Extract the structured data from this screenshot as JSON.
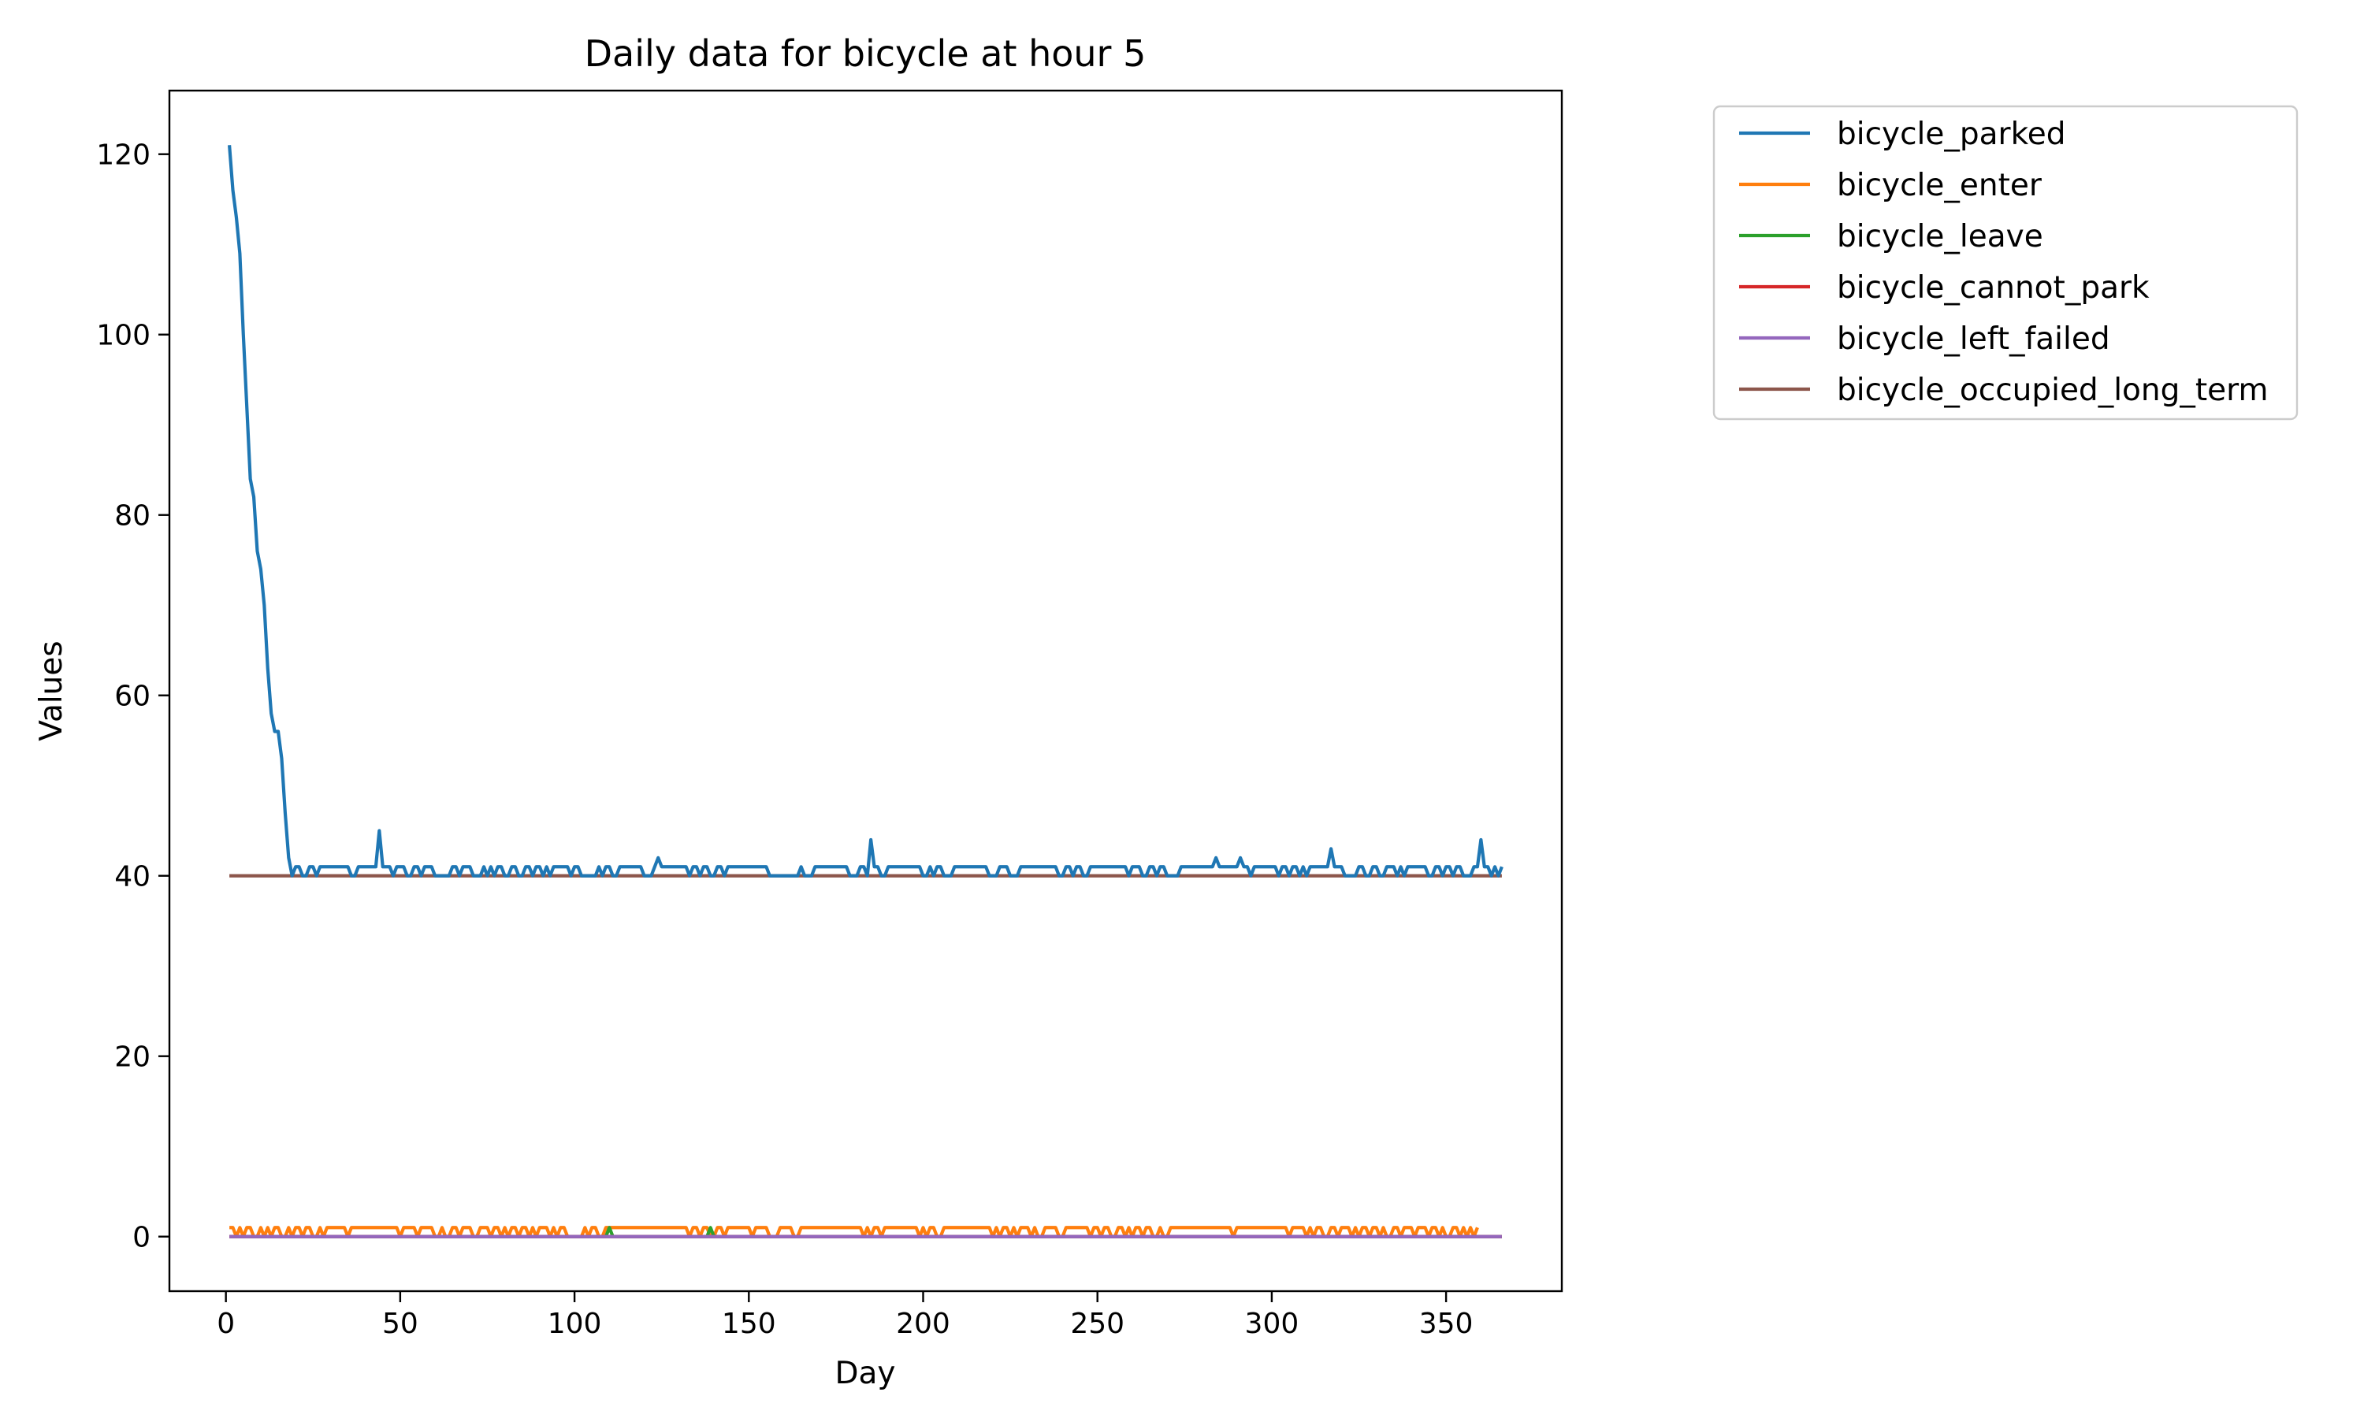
{
  "chart_data": {
    "type": "line",
    "title": "Daily data for bicycle at hour 5",
    "xlabel": "Day",
    "ylabel": "Values",
    "xlim": [
      -16.2,
      383.2
    ],
    "ylim": [
      -6.05,
      127.05
    ],
    "xticks": [
      0,
      50,
      100,
      150,
      200,
      250,
      300,
      350
    ],
    "yticks": [
      0,
      20,
      40,
      60,
      80,
      100,
      120
    ],
    "legend_position": "upper left, outside right of axes",
    "colors": {
      "bicycle_parked": "#1f77b4",
      "bicycle_enter": "#ff7f0e",
      "bicycle_leave": "#2ca02c",
      "bicycle_cannot_park": "#d62728",
      "bicycle_left_failed": "#9467bd",
      "bicycle_occupied_long_term": "#8c564b"
    },
    "series": [
      {
        "name": "bicycle_parked",
        "x_start": 1,
        "values": [
          121,
          116,
          113,
          109,
          100,
          92,
          84,
          82,
          76,
          74,
          70,
          63,
          58,
          56,
          56,
          53,
          47,
          42,
          40,
          41,
          41,
          40,
          40,
          41,
          41,
          40,
          41,
          41,
          41,
          41,
          41,
          41,
          41,
          41,
          41,
          40,
          40,
          41,
          41,
          41,
          41,
          41,
          41,
          45,
          41,
          41,
          41,
          40,
          41,
          41,
          41,
          40,
          40,
          41,
          41,
          40,
          41,
          41,
          41,
          40,
          40,
          40,
          40,
          40,
          41,
          41,
          40,
          41,
          41,
          41,
          40,
          40,
          40,
          41,
          40,
          41,
          40,
          41,
          41,
          40,
          40,
          41,
          41,
          40,
          40,
          41,
          41,
          40,
          41,
          41,
          40,
          41,
          40,
          41,
          41,
          41,
          41,
          41,
          40,
          41,
          41,
          40,
          40,
          40,
          40,
          40,
          41,
          40,
          41,
          41,
          40,
          40,
          41,
          41,
          41,
          41,
          41,
          41,
          41,
          40,
          40,
          40,
          41,
          42,
          41,
          41,
          41,
          41,
          41,
          41,
          41,
          41,
          40,
          41,
          41,
          40,
          41,
          41,
          40,
          40,
          41,
          41,
          40,
          41,
          41,
          41,
          41,
          41,
          41,
          41,
          41,
          41,
          41,
          41,
          41,
          40,
          40,
          40,
          40,
          40,
          40,
          40,
          40,
          40,
          41,
          40,
          40,
          40,
          41,
          41,
          41,
          41,
          41,
          41,
          41,
          41,
          41,
          41,
          40,
          40,
          40,
          41,
          41,
          40,
          44,
          41,
          41,
          40,
          40,
          41,
          41,
          41,
          41,
          41,
          41,
          41,
          41,
          41,
          41,
          40,
          40,
          41,
          40,
          41,
          41,
          40,
          40,
          40,
          41,
          41,
          41,
          41,
          41,
          41,
          41,
          41,
          41,
          41,
          40,
          40,
          40,
          41,
          41,
          41,
          40,
          40,
          40,
          41,
          41,
          41,
          41,
          41,
          41,
          41,
          41,
          41,
          41,
          41,
          40,
          40,
          41,
          41,
          40,
          41,
          41,
          40,
          40,
          41,
          41,
          41,
          41,
          41,
          41,
          41,
          41,
          41,
          41,
          41,
          40,
          41,
          41,
          41,
          40,
          40,
          41,
          41,
          40,
          41,
          41,
          40,
          40,
          40,
          40,
          41,
          41,
          41,
          41,
          41,
          41,
          41,
          41,
          41,
          41,
          42,
          41,
          41,
          41,
          41,
          41,
          41,
          42,
          41,
          41,
          40,
          41,
          41,
          41,
          41,
          41,
          41,
          41,
          40,
          41,
          41,
          40,
          41,
          41,
          40,
          41,
          40,
          41,
          41,
          41,
          41,
          41,
          41,
          43,
          41,
          41,
          41,
          40,
          40,
          40,
          40,
          41,
          41,
          40,
          40,
          41,
          41,
          40,
          40,
          41,
          41,
          41,
          40,
          41,
          40,
          41,
          41,
          41,
          41,
          41,
          41,
          40,
          40,
          41,
          41,
          40,
          41,
          41,
          40,
          41,
          41,
          40,
          40,
          40,
          41,
          41,
          44,
          41,
          41,
          40,
          41,
          40,
          41
        ]
      },
      {
        "name": "bicycle_enter",
        "x_start": 1,
        "values": [
          1,
          1,
          0,
          1,
          0,
          1,
          1,
          0,
          0,
          1,
          0,
          1,
          0,
          1,
          1,
          0,
          0,
          1,
          0,
          1,
          1,
          0,
          1,
          1,
          0,
          0,
          1,
          0,
          1,
          1,
          1,
          1,
          1,
          1,
          0,
          1,
          1,
          1,
          1,
          1,
          1,
          1,
          1,
          1,
          1,
          1,
          1,
          1,
          1,
          0,
          1,
          1,
          1,
          1,
          0,
          1,
          1,
          1,
          1,
          0,
          0,
          1,
          0,
          0,
          1,
          1,
          0,
          1,
          1,
          1,
          0,
          0,
          1,
          1,
          1,
          0,
          1,
          1,
          0,
          1,
          0,
          1,
          1,
          0,
          1,
          1,
          0,
          1,
          0,
          1,
          1,
          1,
          0,
          1,
          0,
          1,
          1,
          0,
          0,
          0,
          0,
          0,
          1,
          0,
          1,
          1,
          0,
          0,
          1,
          1,
          1,
          1,
          1,
          1,
          1,
          1,
          1,
          1,
          1,
          1,
          1,
          1,
          1,
          1,
          1,
          1,
          1,
          1,
          1,
          1,
          1,
          1,
          0,
          1,
          1,
          0,
          1,
          1,
          0,
          0,
          1,
          1,
          0,
          1,
          1,
          1,
          1,
          1,
          1,
          1,
          0,
          1,
          1,
          1,
          1,
          0,
          0,
          0,
          1,
          1,
          1,
          1,
          0,
          0,
          1,
          1,
          1,
          1,
          1,
          1,
          1,
          1,
          1,
          1,
          1,
          1,
          1,
          1,
          1,
          1,
          1,
          1,
          0,
          1,
          0,
          1,
          1,
          0,
          1,
          1,
          1,
          1,
          1,
          1,
          1,
          1,
          1,
          1,
          0,
          1,
          0,
          1,
          1,
          0,
          0,
          1,
          1,
          1,
          1,
          1,
          1,
          1,
          1,
          1,
          1,
          1,
          1,
          1,
          1,
          0,
          1,
          0,
          1,
          1,
          0,
          1,
          0,
          1,
          1,
          1,
          0,
          1,
          0,
          0,
          1,
          1,
          1,
          1,
          0,
          0,
          1,
          1,
          1,
          1,
          1,
          1,
          1,
          0,
          1,
          1,
          0,
          1,
          1,
          0,
          0,
          1,
          1,
          0,
          1,
          0,
          1,
          1,
          0,
          1,
          1,
          0,
          0,
          1,
          0,
          0,
          1,
          1,
          1,
          1,
          1,
          1,
          1,
          1,
          1,
          1,
          1,
          1,
          1,
          1,
          1,
          1,
          1,
          1,
          0,
          1,
          1,
          1,
          1,
          1,
          1,
          1,
          1,
          1,
          1,
          1,
          1,
          1,
          1,
          1,
          0,
          1,
          1,
          1,
          1,
          0,
          1,
          0,
          1,
          1,
          0,
          0,
          1,
          1,
          0,
          1,
          1,
          1,
          0,
          1,
          0,
          1,
          1,
          0,
          1,
          1,
          0,
          1,
          0,
          0,
          1,
          1,
          0,
          1,
          1,
          1,
          0,
          1,
          1,
          1,
          0,
          1,
          1,
          0,
          1,
          0,
          0,
          1,
          1,
          0,
          1,
          0,
          1,
          0,
          1
        ]
      },
      {
        "name": "bicycle_leave",
        "x_start": 1,
        "spikes": [
          [
            110,
            1
          ],
          [
            139,
            1
          ]
        ],
        "values_default": 0
      },
      {
        "name": "bicycle_cannot_park",
        "x": [
          1,
          366
        ],
        "values": [
          0,
          0
        ]
      },
      {
        "name": "bicycle_left_failed",
        "x": [
          1,
          366
        ],
        "values": [
          0,
          0
        ]
      },
      {
        "name": "bicycle_occupied_long_term",
        "x": [
          1,
          366
        ],
        "values": [
          40,
          40
        ]
      }
    ]
  }
}
